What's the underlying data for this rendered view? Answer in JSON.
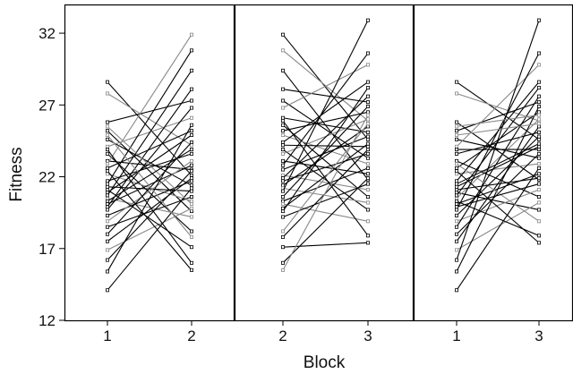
{
  "chart_data": {
    "type": "line",
    "ylabel": "Fitness",
    "xlabel": "Block",
    "ylim": [
      12,
      34
    ],
    "yticks": [
      12,
      17,
      22,
      27,
      32
    ],
    "grid": false,
    "colors": {
      "axis": "#000000",
      "dark_line": "#000000",
      "light_line": "#888888"
    },
    "panels": [
      {
        "x_ticks": [
          "1",
          "2"
        ],
        "series": [
          {
            "values": [
              28.6,
              22.1
            ]
          },
          {
            "values": [
              27.8,
              24.2
            ]
          },
          {
            "values": [
              25.8,
              27.3
            ]
          },
          {
            "values": [
              25.2,
              19.6
            ]
          },
          {
            "values": [
              24.6,
              21.4
            ]
          },
          {
            "values": [
              24.1,
              26.1
            ]
          },
          {
            "values": [
              23.6,
              18.2
            ]
          },
          {
            "values": [
              23.1,
              22.5
            ]
          },
          {
            "values": [
              22.6,
              25.2
            ]
          },
          {
            "values": [
              22.2,
              20.3
            ]
          },
          {
            "values": [
              21.7,
              23.6
            ]
          },
          {
            "values": [
              21.3,
              21.0
            ]
          },
          {
            "values": [
              20.9,
              24.9
            ]
          },
          {
            "values": [
              20.5,
              19.2
            ]
          },
          {
            "values": [
              20.1,
              22.8
            ]
          },
          {
            "values": [
              19.7,
              26.8
            ]
          },
          {
            "values": [
              19.3,
              21.7
            ]
          },
          {
            "values": [
              18.9,
              23.1
            ]
          },
          {
            "values": [
              18.5,
              20.6
            ]
          },
          {
            "values": [
              18.0,
              24.4
            ]
          },
          {
            "values": [
              17.5,
              21.9
            ]
          },
          {
            "values": [
              16.9,
              19.8
            ]
          },
          {
            "values": [
              16.2,
              22.4
            ]
          },
          {
            "values": [
              15.4,
              25.6
            ]
          },
          {
            "values": [
              14.1,
              21.2
            ]
          },
          {
            "values": [
              22.9,
              31.9
            ]
          },
          {
            "values": [
              21.5,
              30.8
            ]
          },
          {
            "values": [
              20.7,
              29.4
            ]
          },
          {
            "values": [
              19.9,
              28.1
            ]
          },
          {
            "values": [
              24.9,
              17.8
            ]
          },
          {
            "values": [
              23.9,
              16.0
            ]
          },
          {
            "values": [
              22.4,
              15.5
            ]
          },
          {
            "values": [
              21.1,
              17.1
            ]
          },
          {
            "values": [
              25.5,
              20.1
            ]
          },
          {
            "values": [
              20.3,
              23.9
            ]
          }
        ]
      },
      {
        "x_ticks": [
          "2",
          "3"
        ],
        "series": [
          {
            "values": [
              31.9,
              24.6
            ]
          },
          {
            "values": [
              30.8,
              25.9
            ]
          },
          {
            "values": [
              29.4,
              21.8
            ]
          },
          {
            "values": [
              28.1,
              27.2
            ]
          },
          {
            "values": [
              27.3,
              23.3
            ]
          },
          {
            "values": [
              26.8,
              29.8
            ]
          },
          {
            "values": [
              26.1,
              25.1
            ]
          },
          {
            "values": [
              25.6,
              20.6
            ]
          },
          {
            "values": [
              25.2,
              26.5
            ]
          },
          {
            "values": [
              24.9,
              22.9
            ]
          },
          {
            "values": [
              24.4,
              28.6
            ]
          },
          {
            "values": [
              24.2,
              24.1
            ]
          },
          {
            "values": [
              23.9,
              19.7
            ]
          },
          {
            "values": [
              23.6,
              26.0
            ]
          },
          {
            "values": [
              23.1,
              22.2
            ]
          },
          {
            "values": [
              22.8,
              30.6
            ]
          },
          {
            "values": [
              22.5,
              24.8
            ]
          },
          {
            "values": [
              22.1,
              21.1
            ]
          },
          {
            "values": [
              21.9,
              27.6
            ]
          },
          {
            "values": [
              21.7,
              23.6
            ]
          },
          {
            "values": [
              21.4,
              25.5
            ]
          },
          {
            "values": [
              21.2,
              20.2
            ]
          },
          {
            "values": [
              21.0,
              32.9
            ]
          },
          {
            "values": [
              20.6,
              26.9
            ]
          },
          {
            "values": [
              20.3,
              22.6
            ]
          },
          {
            "values": [
              20.1,
              18.9
            ]
          },
          {
            "values": [
              19.8,
              24.3
            ]
          },
          {
            "values": [
              19.6,
              28.2
            ]
          },
          {
            "values": [
              19.2,
              21.5
            ]
          },
          {
            "values": [
              18.2,
              25.7
            ]
          },
          {
            "values": [
              17.8,
              23.9
            ]
          },
          {
            "values": [
              17.1,
              17.4
            ]
          },
          {
            "values": [
              16.0,
              21.9
            ]
          },
          {
            "values": [
              15.5,
              26.3
            ]
          },
          {
            "values": [
              25.9,
              17.9
            ]
          }
        ]
      },
      {
        "x_ticks": [
          "1",
          "3"
        ],
        "series": [
          {
            "values": [
              28.6,
              24.6
            ]
          },
          {
            "values": [
              27.8,
              25.9
            ]
          },
          {
            "values": [
              25.8,
              21.8
            ]
          },
          {
            "values": [
              25.2,
              27.2
            ]
          },
          {
            "values": [
              24.6,
              23.3
            ]
          },
          {
            "values": [
              24.1,
              29.8
            ]
          },
          {
            "values": [
              23.6,
              25.1
            ]
          },
          {
            "values": [
              23.1,
              20.6
            ]
          },
          {
            "values": [
              22.6,
              26.5
            ]
          },
          {
            "values": [
              22.2,
              22.9
            ]
          },
          {
            "values": [
              21.7,
              28.6
            ]
          },
          {
            "values": [
              21.3,
              24.1
            ]
          },
          {
            "values": [
              20.9,
              19.7
            ]
          },
          {
            "values": [
              20.5,
              26.0
            ]
          },
          {
            "values": [
              20.1,
              22.2
            ]
          },
          {
            "values": [
              19.7,
              30.6
            ]
          },
          {
            "values": [
              19.3,
              24.8
            ]
          },
          {
            "values": [
              18.9,
              21.1
            ]
          },
          {
            "values": [
              18.5,
              27.6
            ]
          },
          {
            "values": [
              18.0,
              23.6
            ]
          },
          {
            "values": [
              17.5,
              25.5
            ]
          },
          {
            "values": [
              16.9,
              20.2
            ]
          },
          {
            "values": [
              16.2,
              32.9
            ]
          },
          {
            "values": [
              15.4,
              26.9
            ]
          },
          {
            "values": [
              14.1,
              22.6
            ]
          },
          {
            "values": [
              22.9,
              18.9
            ]
          },
          {
            "values": [
              21.5,
              24.3
            ]
          },
          {
            "values": [
              20.7,
              28.2
            ]
          },
          {
            "values": [
              19.9,
              21.5
            ]
          },
          {
            "values": [
              24.9,
              25.7
            ]
          },
          {
            "values": [
              23.9,
              23.9
            ]
          },
          {
            "values": [
              22.4,
              17.4
            ]
          },
          {
            "values": [
              21.1,
              21.9
            ]
          },
          {
            "values": [
              25.5,
              26.3
            ]
          },
          {
            "values": [
              20.3,
              17.9
            ]
          }
        ]
      }
    ]
  }
}
